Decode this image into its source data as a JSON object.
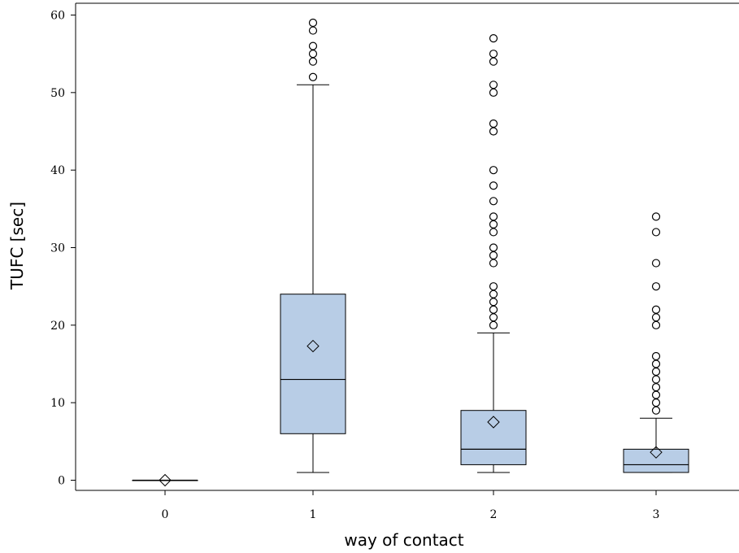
{
  "chart_data": {
    "type": "box",
    "xlabel": "way of contact",
    "ylabel": "TUFC [sec]",
    "ylim": [
      -1.2,
      61.5
    ],
    "yticks": [
      0,
      10,
      20,
      30,
      40,
      50,
      60
    ],
    "grid": false,
    "box_fill": "#b8cde6",
    "categories": [
      "0",
      "1",
      "2",
      "3"
    ],
    "boxes": [
      {
        "category": "0",
        "min": 0,
        "q1": 0,
        "median": 0,
        "q3": 0,
        "max": 0,
        "mean": 0,
        "outliers": []
      },
      {
        "category": "1",
        "min": 1,
        "q1": 6,
        "median": 13,
        "q3": 24,
        "max": 51,
        "mean": 17.3,
        "outliers": [
          52,
          54,
          55,
          56,
          58,
          59
        ]
      },
      {
        "category": "2",
        "min": 1,
        "q1": 2,
        "median": 4,
        "q3": 9,
        "max": 19,
        "mean": 7.5,
        "outliers": [
          20,
          21,
          22,
          23,
          24,
          25,
          28,
          29,
          30,
          32,
          33,
          34,
          36,
          38,
          40,
          45,
          46,
          50,
          51,
          54,
          55,
          57
        ]
      },
      {
        "category": "3",
        "min": 1,
        "q1": 1,
        "median": 2,
        "q3": 4,
        "max": 8,
        "mean": 3.6,
        "outliers": [
          9,
          10,
          11,
          12,
          13,
          14,
          15,
          16,
          20,
          21,
          22,
          25,
          28,
          32,
          34
        ]
      }
    ]
  }
}
